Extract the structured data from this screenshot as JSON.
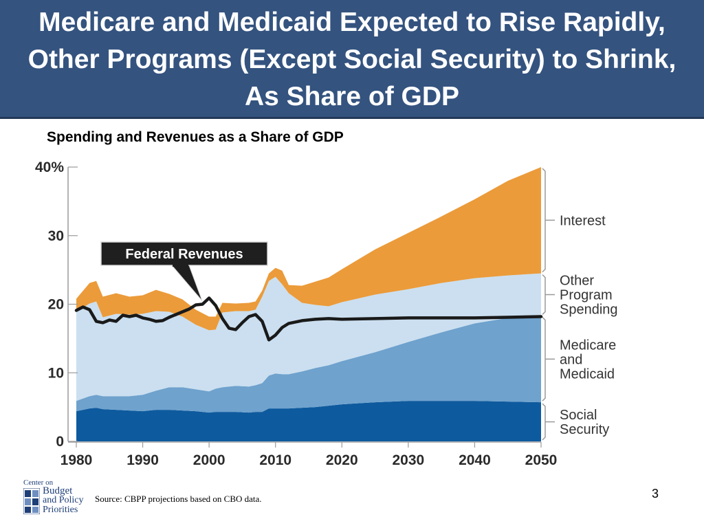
{
  "slide": {
    "title": "Medicare and Medicaid Expected to Rise Rapidly, Other Programs (Except Social Security) to Shrink, As Share of GDP",
    "subtitle": "Spending and Revenues as a Share of GDP",
    "source": "Source: CBPP projections based on CBO data.",
    "page_number": "3"
  },
  "logo": {
    "center": "Center on",
    "budget": "Budget",
    "and_policy": "and Policy",
    "priorities": "Priorities"
  },
  "chart_data": {
    "type": "area",
    "stacked": true,
    "xlim": [
      1980,
      2050
    ],
    "ylim": [
      0,
      40
    ],
    "x_ticks": [
      1980,
      1990,
      2000,
      2010,
      2020,
      2030,
      2040,
      2050
    ],
    "y_ticks": [
      0,
      10,
      20,
      30,
      40
    ],
    "y_tick_labels": [
      "0",
      "10",
      "20",
      "30",
      "40%"
    ],
    "x": [
      1980,
      1982,
      1983,
      1984,
      1986,
      1988,
      1990,
      1992,
      1994,
      1996,
      1998,
      2000,
      2001,
      2002,
      2004,
      2006,
      2007,
      2008,
      2009,
      2010,
      2011,
      2012,
      2014,
      2016,
      2018,
      2020,
      2025,
      2030,
      2035,
      2040,
      2045,
      2050
    ],
    "series": [
      {
        "name": "Social Security",
        "color": "#0e5a9e",
        "values": [
          4.4,
          4.8,
          4.9,
          4.7,
          4.6,
          4.5,
          4.4,
          4.6,
          4.6,
          4.5,
          4.4,
          4.2,
          4.3,
          4.3,
          4.3,
          4.2,
          4.3,
          4.3,
          4.8,
          4.8,
          4.8,
          4.8,
          4.9,
          5.0,
          5.2,
          5.4,
          5.7,
          5.9,
          5.9,
          5.9,
          5.8,
          5.7
        ]
      },
      {
        "name": "Medicare and Medicaid",
        "color": "#6fa2cd",
        "values": [
          1.5,
          1.8,
          1.9,
          1.9,
          2.0,
          2.1,
          2.4,
          2.8,
          3.3,
          3.4,
          3.2,
          3.1,
          3.4,
          3.6,
          3.8,
          3.8,
          3.9,
          4.2,
          4.8,
          5.1,
          5.0,
          5.0,
          5.3,
          5.7,
          5.9,
          6.3,
          7.3,
          8.6,
          10.0,
          11.3,
          12.2,
          12.6
        ]
      },
      {
        "name": "Other Program Spending",
        "color": "#cbdff0",
        "values": [
          13.0,
          13.5,
          13.6,
          11.5,
          12.0,
          11.9,
          11.8,
          11.6,
          11.0,
          10.3,
          9.4,
          8.9,
          8.6,
          10.9,
          10.9,
          11.0,
          11.0,
          12.6,
          13.8,
          14.1,
          13.1,
          11.8,
          10.0,
          9.2,
          8.6,
          8.6,
          8.4,
          7.7,
          7.2,
          6.6,
          6.2,
          6.2
        ]
      },
      {
        "name": "Interest",
        "color": "#eb9b3a",
        "values": [
          1.9,
          3.0,
          3.0,
          3.0,
          3.0,
          2.6,
          2.7,
          3.1,
          2.6,
          2.5,
          2.2,
          2.0,
          1.9,
          1.4,
          1.1,
          1.2,
          1.2,
          0.9,
          1.1,
          1.3,
          2.0,
          1.2,
          2.5,
          3.4,
          4.2,
          4.8,
          6.6,
          8.2,
          9.7,
          11.5,
          13.8,
          15.5
        ]
      }
    ],
    "line": {
      "name": "Federal Revenues",
      "color": "#1a1a1a",
      "x": [
        1980,
        1981,
        1982,
        1983,
        1984,
        1985,
        1986,
        1987,
        1988,
        1989,
        1990,
        1991,
        1992,
        1993,
        1994,
        1995,
        1996,
        1997,
        1998,
        1999,
        2000,
        2001,
        2002,
        2003,
        2004,
        2005,
        2006,
        2007,
        2008,
        2009,
        2010,
        2011,
        2012,
        2014,
        2016,
        2018,
        2020,
        2025,
        2030,
        2035,
        2040,
        2045,
        2050
      ],
      "values": [
        19.1,
        19.6,
        19.2,
        17.5,
        17.3,
        17.7,
        17.5,
        18.4,
        18.2,
        18.4,
        18.0,
        17.8,
        17.5,
        17.6,
        18.1,
        18.5,
        18.9,
        19.3,
        19.9,
        20.0,
        20.9,
        19.8,
        17.9,
        16.5,
        16.3,
        17.3,
        18.2,
        18.5,
        17.5,
        14.8,
        15.5,
        16.6,
        17.2,
        17.6,
        17.8,
        17.9,
        17.8,
        17.9,
        18.0,
        18.0,
        18.0,
        18.1,
        18.2
      ]
    },
    "legend_position": "right",
    "grid": false
  }
}
